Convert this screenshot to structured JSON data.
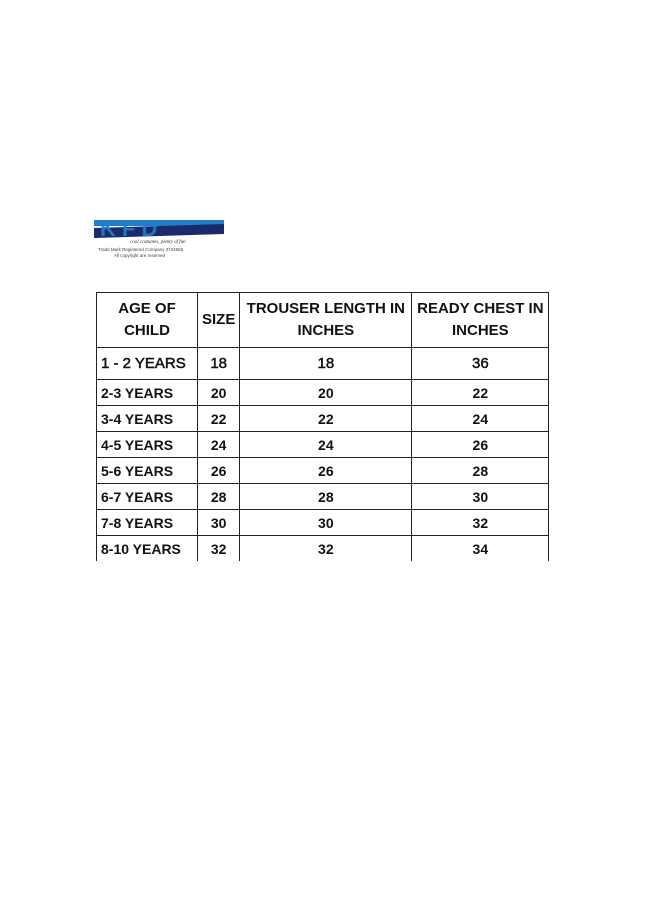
{
  "logo": {
    "brand": "KFD",
    "tagline": "cool costumes, plenty of fun",
    "trademark": "Trade Mark Registered Company 3734965",
    "copyright": "All copyright are reserved",
    "colors": {
      "blue": "#1e7fc8",
      "navy": "#1b2a6b"
    }
  },
  "table": {
    "headers": [
      "AGE OF CHILD",
      "SIZE",
      "TROUSER LENGTH IN INCHES",
      "READY CHEST IN INCHES"
    ],
    "rows": [
      [
        "1 - 2 YEARS",
        "18",
        "18",
        "36"
      ],
      [
        "2-3 YEARS",
        "20",
        "20",
        "22"
      ],
      [
        "3-4 YEARS",
        "22",
        "22",
        "24"
      ],
      [
        "4-5 YEARS",
        "24",
        "24",
        "26"
      ],
      [
        "5-6 YEARS",
        "26",
        "26",
        "28"
      ],
      [
        "6-7 YEARS",
        "28",
        "28",
        "30"
      ],
      [
        "7-8 YEARS",
        "30",
        "30",
        "32"
      ],
      [
        "8-10 YEARS",
        "32",
        "32",
        "34"
      ]
    ]
  }
}
